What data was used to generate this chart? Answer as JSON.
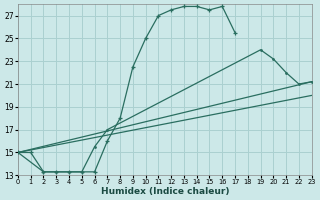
{
  "xlabel": "Humidex (Indice chaleur)",
  "bg_color": "#cce8e8",
  "grid_color": "#aad0d0",
  "line_color": "#2a6e60",
  "xlim": [
    0,
    23
  ],
  "ylim": [
    13,
    28
  ],
  "xticks": [
    0,
    1,
    2,
    3,
    4,
    5,
    6,
    7,
    8,
    9,
    10,
    11,
    12,
    13,
    14,
    15,
    16,
    17,
    18,
    19,
    20,
    21,
    22,
    23
  ],
  "yticks": [
    13,
    15,
    17,
    19,
    21,
    23,
    25,
    27
  ],
  "series1_x": [
    0,
    1,
    2,
    3,
    4,
    5,
    6,
    7,
    8,
    9,
    10,
    11,
    12,
    13,
    14,
    15,
    16,
    17
  ],
  "series1_y": [
    15.0,
    15.0,
    13.3,
    13.3,
    13.3,
    13.3,
    13.3,
    16.0,
    18.0,
    22.5,
    25.0,
    27.0,
    27.5,
    27.8,
    27.8,
    27.5,
    27.8,
    25.5
  ],
  "series2_x": [
    0,
    2,
    3,
    4,
    5,
    6,
    7,
    19,
    20,
    21,
    22,
    23
  ],
  "series2_y": [
    15.0,
    13.3,
    13.3,
    13.3,
    13.3,
    15.5,
    17.0,
    24.0,
    23.2,
    22.0,
    21.0,
    21.2
  ],
  "series3_x": [
    0,
    23
  ],
  "series3_y": [
    15.0,
    21.2
  ],
  "series4_x": [
    0,
    23
  ],
  "series4_y": [
    15.0,
    20.0
  ]
}
